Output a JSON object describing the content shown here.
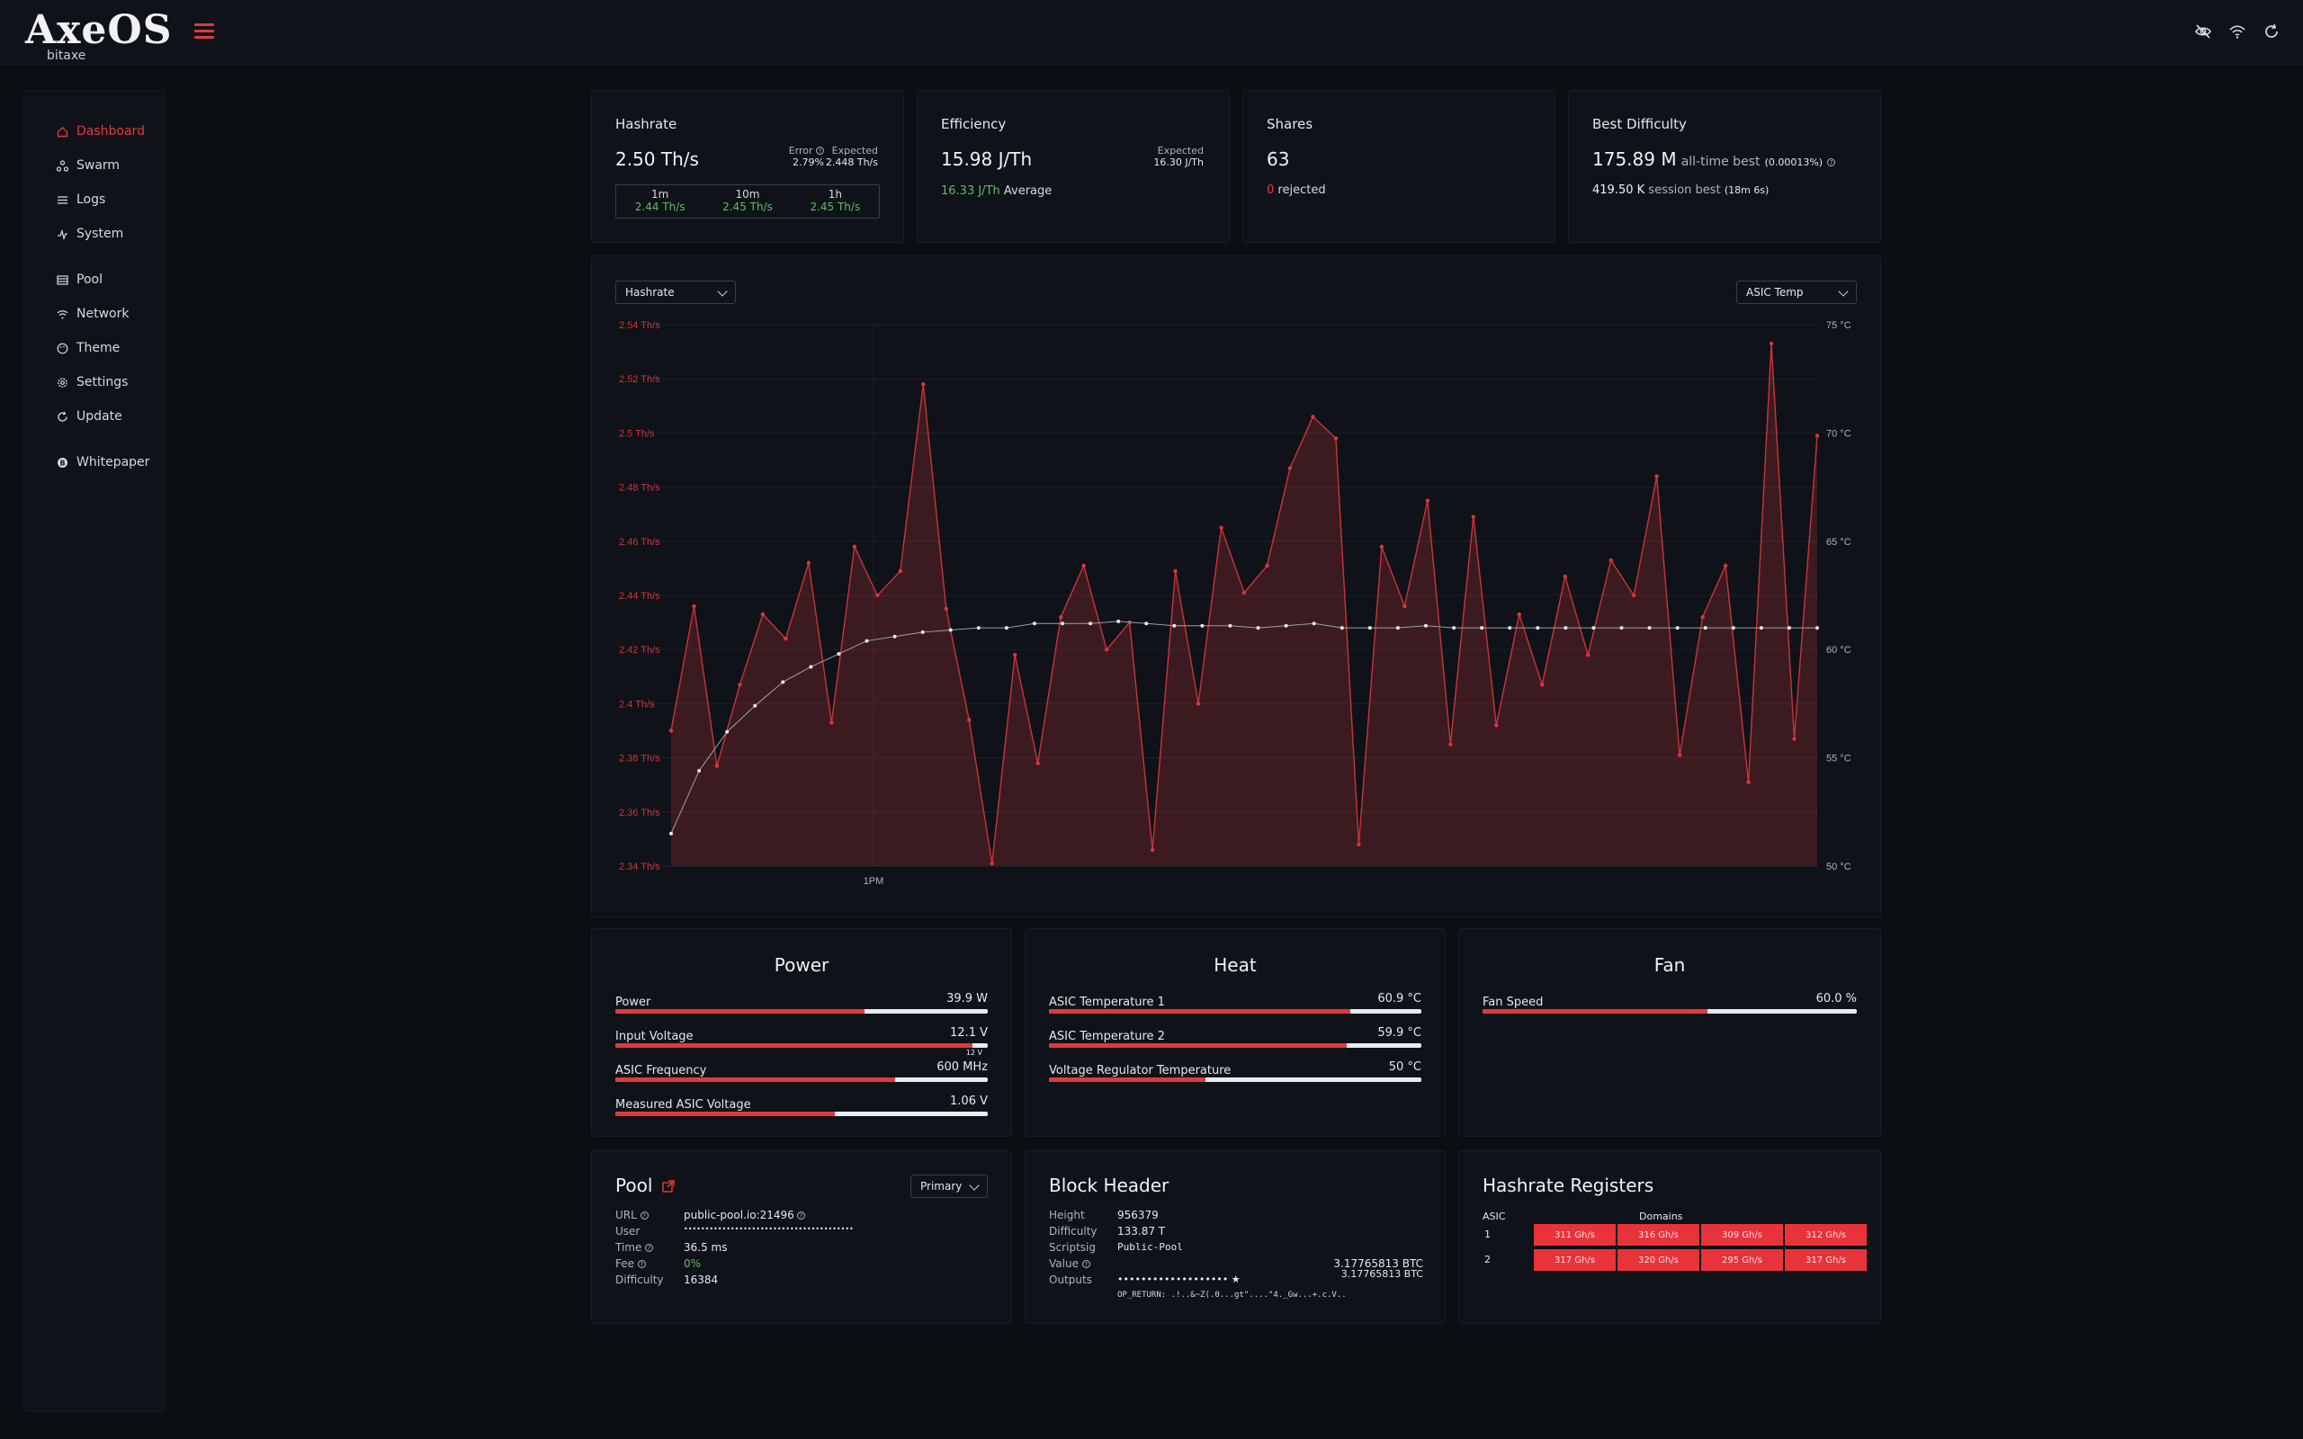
{
  "app": {
    "logo": "AxeOS",
    "logo_sub": "bitaxe"
  },
  "topbar": {
    "icons": [
      "eye-off-icon",
      "wifi-icon",
      "refresh-icon"
    ]
  },
  "sidebar": {
    "items": [
      {
        "label": "Dashboard",
        "icon": "home-icon",
        "active": true
      },
      {
        "label": "Swarm",
        "icon": "swarm-icon"
      },
      {
        "label": "Logs",
        "icon": "list-icon"
      },
      {
        "label": "System",
        "icon": "pulse-icon"
      },
      {
        "label": "Pool",
        "icon": "server-icon"
      },
      {
        "label": "Network",
        "icon": "wifi-icon"
      },
      {
        "label": "Theme",
        "icon": "palette-icon"
      },
      {
        "label": "Settings",
        "icon": "gear-icon"
      },
      {
        "label": "Update",
        "icon": "refresh-icon"
      },
      {
        "label": "Whitepaper",
        "icon": "bitcoin-icon"
      }
    ]
  },
  "stats": {
    "hashrate": {
      "title": "Hashrate",
      "value": "2.50 Th/s",
      "error_label": "Error",
      "error_value": "2.79%",
      "expected_label": "Expected",
      "expected_value": "2.448 Th/s",
      "windows": [
        {
          "label": "1m",
          "value": "2.44 Th/s"
        },
        {
          "label": "10m",
          "value": "2.45 Th/s"
        },
        {
          "label": "1h",
          "value": "2.45 Th/s"
        }
      ]
    },
    "efficiency": {
      "title": "Efficiency",
      "value": "15.98 J/Th",
      "expected_label": "Expected",
      "expected_value": "16.30 J/Th",
      "average_value": "16.33 J/Th",
      "average_label": "Average"
    },
    "shares": {
      "title": "Shares",
      "value": "63",
      "rejected_count": "0",
      "rejected_label": "rejected"
    },
    "best_difficulty": {
      "title": "Best Difficulty",
      "alltime_value": "175.89 M",
      "alltime_label": "all-time best",
      "alltime_pct": "(0.00013%)",
      "session_value": "419.50 K",
      "session_label": "session best",
      "session_age": "(18m 6s)"
    }
  },
  "chart_controls": {
    "left_select": "Hashrate",
    "right_select": "ASIC Temp"
  },
  "chart_data": {
    "type": "line",
    "x_tick": "1PM",
    "y_left_ticks": [
      "2.54 Th/s",
      "2.52 Th/s",
      "2.5 Th/s",
      "2.48 Th/s",
      "2.46 Th/s",
      "2.44 Th/s",
      "2.42 Th/s",
      "2.4 Th/s",
      "2.38 Th/s",
      "2.36 Th/s",
      "2.34 Th/s"
    ],
    "y_right_ticks": [
      "75 °C",
      "70 °C",
      "65 °C",
      "60 °C",
      "55 °C",
      "50 °C"
    ],
    "ylim_left": [
      2.34,
      2.54
    ],
    "ylim_right": [
      50,
      75
    ],
    "series": [
      {
        "axis": "left",
        "color": "#e03a3e",
        "fill": true,
        "values": [
          2.39,
          2.436,
          2.377,
          2.407,
          2.433,
          2.424,
          2.452,
          2.393,
          2.458,
          2.44,
          2.449,
          2.518,
          2.435,
          2.394,
          2.341,
          2.418,
          2.378,
          2.432,
          2.451,
          2.42,
          2.43,
          2.346,
          2.449,
          2.4,
          2.465,
          2.441,
          2.451,
          2.487,
          2.506,
          2.498,
          2.348,
          2.458,
          2.436,
          2.475,
          2.385,
          2.469,
          2.392,
          2.433,
          2.407,
          2.447,
          2.418,
          2.453,
          2.44,
          2.484,
          2.381,
          2.432,
          2.451,
          2.371,
          2.533,
          2.387,
          2.499
        ]
      },
      {
        "axis": "right",
        "color": "#d7d9dc",
        "fill": false,
        "values": [
          51.5,
          54.4,
          56.2,
          57.4,
          58.5,
          59.2,
          59.8,
          60.4,
          60.6,
          60.8,
          60.9,
          61.0,
          61.0,
          61.2,
          61.2,
          61.2,
          61.3,
          61.2,
          61.1,
          61.1,
          61.1,
          61.0,
          61.1,
          61.2,
          61.0,
          61.0,
          61.0,
          61.1,
          61.0,
          61.0,
          61.0,
          61.0,
          61.0,
          61.0,
          61.0,
          61.0,
          61.0,
          61.0,
          61.0,
          61.0,
          61.0,
          61.0
        ]
      }
    ]
  },
  "power": {
    "title": "Power",
    "rows": [
      {
        "label": "Power",
        "value": "39.9 W",
        "fill": 0.67
      },
      {
        "label": "Input Voltage",
        "value": "12.1 V",
        "fill": 0.96,
        "marker": "12 V"
      },
      {
        "label": "ASIC Frequency",
        "value": "600 MHz",
        "fill": 0.75
      },
      {
        "label": "Measured ASIC Voltage",
        "value": "1.06 V",
        "fill": 0.59
      }
    ]
  },
  "heat": {
    "title": "Heat",
    "rows": [
      {
        "label": "ASIC Temperature 1",
        "value": "60.9 °C",
        "fill": 0.81
      },
      {
        "label": "ASIC Temperature 2",
        "value": "59.9 °C",
        "fill": 0.8
      },
      {
        "label": "Voltage Regulator Temperature",
        "value": "50 °C",
        "fill": 0.42
      }
    ]
  },
  "fan": {
    "title": "Fan",
    "rows": [
      {
        "label": "Fan Speed",
        "value": "60.0 %",
        "fill": 0.6
      }
    ]
  },
  "pool": {
    "title": "Pool",
    "select": "Primary",
    "rows": [
      {
        "key": "URL",
        "value": "public-pool.io:21496",
        "info": true
      },
      {
        "key": "User",
        "value": "••••••••••••••••••••••••••••••••••••••••"
      },
      {
        "key": "Time",
        "value": "36.5 ms",
        "info": true
      },
      {
        "key": "Fee",
        "value": "0%",
        "info": true,
        "green": true
      },
      {
        "key": "Difficulty",
        "value": "16384"
      }
    ]
  },
  "block_header": {
    "title": "Block Header",
    "height_label": "Height",
    "height": "956379",
    "difficulty_label": "Difficulty",
    "difficulty": "133.87 T",
    "scriptsig_label": "Scriptsig",
    "scriptsig": "Public-Pool",
    "value_label": "Value",
    "value": "3.17765813 BTC",
    "outputs_label": "Outputs",
    "output_address": "••••••••••••••••••• ★",
    "output_value": "3.17765813 BTC",
    "op_return": "OP_RETURN: .!..&~Z(.0...gt\"....\"4._Gw...+.c.V.."
  },
  "registers": {
    "title": "Hashrate Registers",
    "asic_header": "ASIC",
    "domains_header": "Domains",
    "rows": [
      {
        "asic": "1",
        "cells": [
          "311 Gh/s",
          "316 Gh/s",
          "309 Gh/s",
          "312 Gh/s"
        ]
      },
      {
        "asic": "2",
        "cells": [
          "317 Gh/s",
          "320 Gh/s",
          "295 Gh/s",
          "317 Gh/s"
        ]
      }
    ]
  }
}
